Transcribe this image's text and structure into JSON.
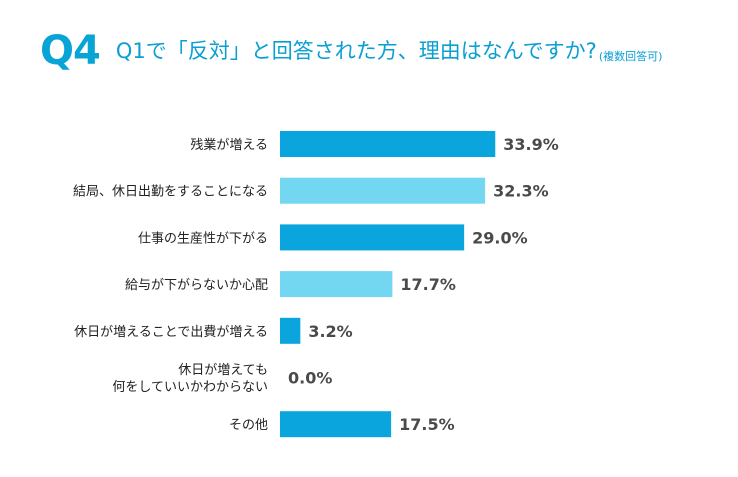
{
  "header": {
    "qno": "Q4",
    "question": "Q1で「反対」と回答された方、理由はなんですか?",
    "note": "(複数回答可)"
  },
  "colors": {
    "accent": "#0aa5dc",
    "light": "#74d7f1",
    "title": "#08a4d6"
  },
  "chart_data": {
    "type": "bar",
    "orientation": "horizontal",
    "title": "Q1で「反対」と回答された方、理由はなんですか?",
    "unit": "%",
    "xlim": [
      0,
      100
    ],
    "categories": [
      [
        "残業が増える"
      ],
      [
        "結局、休日出勤をすることになる"
      ],
      [
        "仕事の生産性が下がる"
      ],
      [
        "給与が下がらないか心配"
      ],
      [
        "休日が増えることで出費が増える"
      ],
      [
        "休日が増えても",
        "何をしていいかわからない"
      ],
      [
        "その他"
      ]
    ],
    "values": [
      33.9,
      32.3,
      29.0,
      17.7,
      3.2,
      0.0,
      17.5
    ],
    "value_labels": [
      "33.9%",
      "32.3%",
      "29.0%",
      "17.7%",
      "3.2%",
      "0.0%",
      "17.5%"
    ],
    "colors": [
      "#0aa5dc",
      "#74d7f1",
      "#0aa5dc",
      "#74d7f1",
      "#0aa5dc",
      "#74d7f1",
      "#0aa5dc"
    ]
  }
}
